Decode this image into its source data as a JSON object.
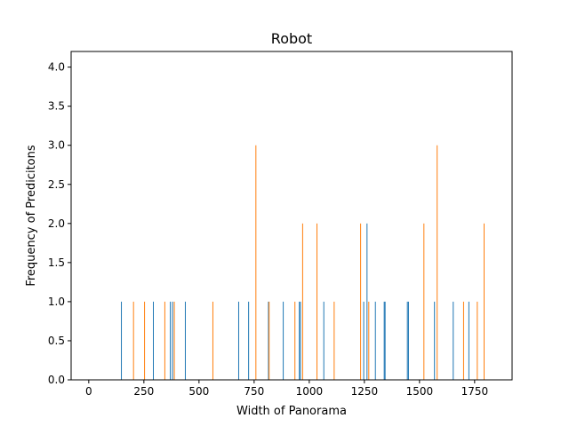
{
  "chart_data": {
    "type": "bar",
    "title": "Robot",
    "xlabel": "Width of Panorama",
    "ylabel": "Frequency of Predicitons",
    "xlim": [
      -80,
      1920
    ],
    "ylim": [
      0,
      4.2
    ],
    "xticks": [
      0,
      250,
      500,
      750,
      1000,
      1250,
      1500,
      1750
    ],
    "yticks": [
      0.0,
      0.5,
      1.0,
      1.5,
      2.0,
      2.5,
      3.0,
      3.5,
      4.0
    ],
    "xtick_labels": [
      "0",
      "250",
      "500",
      "750",
      "1000",
      "1250",
      "1500",
      "1750"
    ],
    "ytick_labels": [
      "0.0",
      "0.5",
      "1.0",
      "1.5",
      "2.0",
      "2.5",
      "3.0",
      "3.5",
      "4.0"
    ],
    "grid": false,
    "series": [
      {
        "color": "#1f77b4",
        "x": [
          148,
          293,
          370,
          380,
          438,
          680,
          725,
          815,
          882,
          955,
          960,
          1066,
          1247,
          1262,
          1300,
          1340,
          1344,
          1445,
          1450,
          1568,
          1653,
          1724
        ],
        "values": [
          1,
          1,
          1,
          1,
          1,
          1,
          1,
          1,
          1,
          1,
          1,
          1,
          1,
          2,
          1,
          1,
          1,
          1,
          1,
          1,
          1,
          1
        ]
      },
      {
        "color": "#ff7f0e",
        "x": [
          203,
          253,
          345,
          388,
          563,
          758,
          818,
          935,
          970,
          1035,
          1113,
          1233,
          1270,
          1520,
          1580,
          1700,
          1762,
          1793
        ],
        "values": [
          1,
          1,
          1,
          1,
          1,
          3,
          1,
          1,
          2,
          2,
          1,
          2,
          1,
          2,
          3,
          1,
          1,
          2
        ]
      }
    ]
  }
}
